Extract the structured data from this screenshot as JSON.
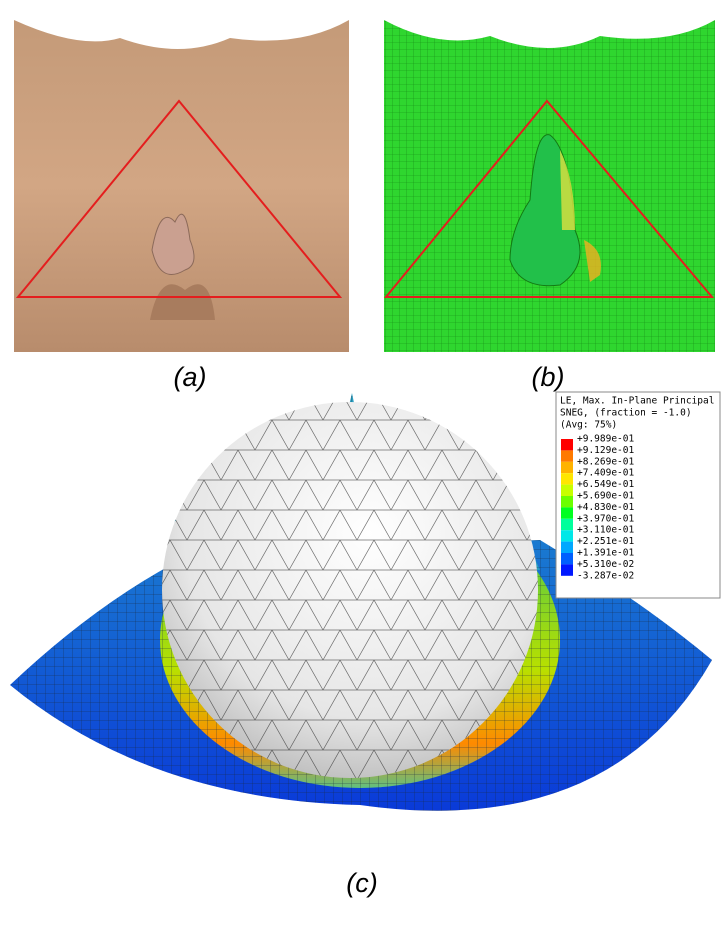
{
  "panels": {
    "a": {
      "label": "(a)"
    },
    "b": {
      "label": "(b)"
    },
    "c": {
      "label": "(c)"
    }
  },
  "legend": {
    "title_lines": [
      "LE, Max. In-Plane Principal",
      "SNEG, (fraction = -1.0)",
      "(Avg: 75%)"
    ],
    "values": [
      "+9.989e-01",
      "+9.129e-01",
      "+8.269e-01",
      "+7.409e-01",
      "+6.549e-01",
      "+5.690e-01",
      "+4.830e-01",
      "+3.970e-01",
      "+3.110e-01",
      "+2.251e-01",
      "+1.391e-01",
      "+5.310e-02",
      "-3.287e-02"
    ],
    "colors": [
      "#ff0000",
      "#ff7a00",
      "#ffb300",
      "#ffe600",
      "#c8ff00",
      "#6cff00",
      "#00ff20",
      "#00ff9c",
      "#00e8e8",
      "#00a8ff",
      "#0060ff",
      "#0018ff"
    ]
  }
}
